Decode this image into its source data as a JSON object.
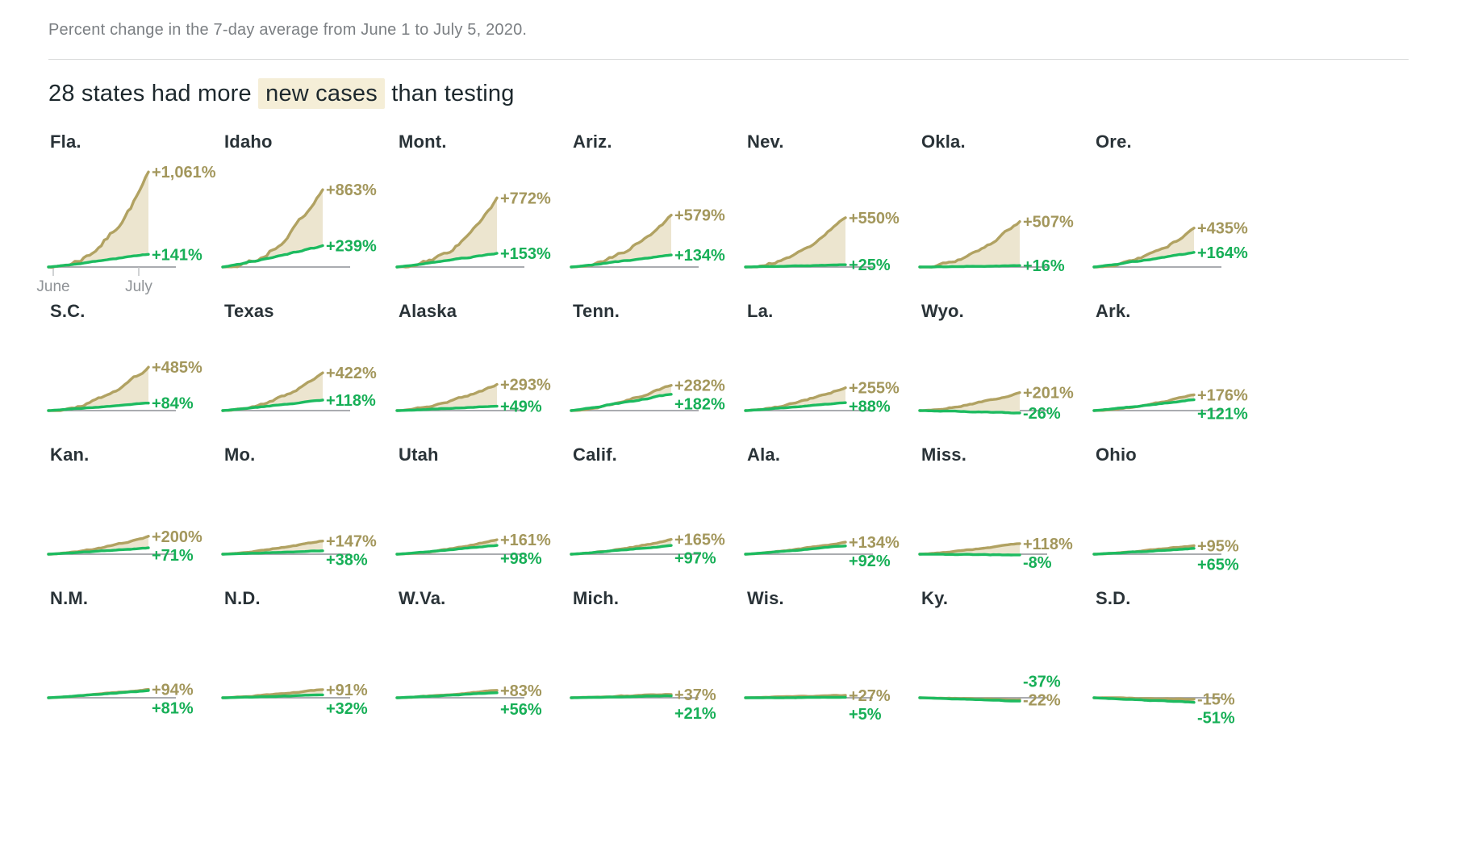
{
  "page": {
    "subtitle": "Percent change in the 7-day average from June 1 to July 5, 2020.",
    "title_prefix": "28 states had more",
    "title_highlight": "new cases",
    "title_suffix": "than testing"
  },
  "axis": {
    "month_labels": [
      "June",
      "July"
    ]
  },
  "colors": {
    "cases_line": "#b1a262",
    "cases_label": "#a3975c",
    "cases_fill": "#ece5cf",
    "testing_line": "#1dbb60",
    "testing_label": "#17af57",
    "axis": "#9ea1a4",
    "tick": "#c0c3c5",
    "tick_label": "#8f9397"
  },
  "chart_data": {
    "type": "line",
    "title": "28 states had more new cases than testing",
    "subtitle": "Percent change in the 7-day average from June 1 to July 5, 2020.",
    "unit": "percent change in 7-day average",
    "x_axis": {
      "start": "June 1, 2020",
      "end": "July 5, 2020",
      "ticks": [
        "June",
        "July"
      ]
    },
    "series": [
      "new cases",
      "testing"
    ],
    "legend_position": "inline-right",
    "grid": {
      "rows": 4,
      "cols": 7
    },
    "states": [
      {
        "name": "Fla.",
        "cases": 1061,
        "testing": 141,
        "cases_label": "+1,061%",
        "testing_label": "+141%"
      },
      {
        "name": "Idaho",
        "cases": 863,
        "testing": 239,
        "cases_label": "+863%",
        "testing_label": "+239%"
      },
      {
        "name": "Mont.",
        "cases": 772,
        "testing": 153,
        "cases_label": "+772%",
        "testing_label": "+153%"
      },
      {
        "name": "Ariz.",
        "cases": 579,
        "testing": 134,
        "cases_label": "+579%",
        "testing_label": "+134%"
      },
      {
        "name": "Nev.",
        "cases": 550,
        "testing": 25,
        "cases_label": "+550%",
        "testing_label": "+25%"
      },
      {
        "name": "Okla.",
        "cases": 507,
        "testing": 16,
        "cases_label": "+507%",
        "testing_label": "+16%"
      },
      {
        "name": "Ore.",
        "cases": 435,
        "testing": 164,
        "cases_label": "+435%",
        "testing_label": "+164%"
      },
      {
        "name": "S.C.",
        "cases": 485,
        "testing": 84,
        "cases_label": "+485%",
        "testing_label": "+84%"
      },
      {
        "name": "Texas",
        "cases": 422,
        "testing": 118,
        "cases_label": "+422%",
        "testing_label": "+118%"
      },
      {
        "name": "Alaska",
        "cases": 293,
        "testing": 49,
        "cases_label": "+293%",
        "testing_label": "+49%"
      },
      {
        "name": "Tenn.",
        "cases": 282,
        "testing": 182,
        "cases_label": "+282%",
        "testing_label": "+182%"
      },
      {
        "name": "La.",
        "cases": 255,
        "testing": 88,
        "cases_label": "+255%",
        "testing_label": "+88%"
      },
      {
        "name": "Wyo.",
        "cases": 201,
        "testing": -26,
        "cases_label": "+201%",
        "testing_label": "-26%"
      },
      {
        "name": "Ark.",
        "cases": 176,
        "testing": 121,
        "cases_label": "+176%",
        "testing_label": "+121%"
      },
      {
        "name": "Kan.",
        "cases": 200,
        "testing": 71,
        "cases_label": "+200%",
        "testing_label": "+71%"
      },
      {
        "name": "Mo.",
        "cases": 147,
        "testing": 38,
        "cases_label": "+147%",
        "testing_label": "+38%"
      },
      {
        "name": "Utah",
        "cases": 161,
        "testing": 98,
        "cases_label": "+161%",
        "testing_label": "+98%"
      },
      {
        "name": "Calif.",
        "cases": 165,
        "testing": 97,
        "cases_label": "+165%",
        "testing_label": "+97%"
      },
      {
        "name": "Ala.",
        "cases": 134,
        "testing": 92,
        "cases_label": "+134%",
        "testing_label": "+92%"
      },
      {
        "name": "Miss.",
        "cases": 118,
        "testing": -8,
        "cases_label": "+118%",
        "testing_label": "-8%"
      },
      {
        "name": "Ohio",
        "cases": 95,
        "testing": 65,
        "cases_label": "+95%",
        "testing_label": "+65%"
      },
      {
        "name": "N.M.",
        "cases": 94,
        "testing": 81,
        "cases_label": "+94%",
        "testing_label": "+81%"
      },
      {
        "name": "N.D.",
        "cases": 91,
        "testing": 32,
        "cases_label": "+91%",
        "testing_label": "+32%"
      },
      {
        "name": "W.Va.",
        "cases": 83,
        "testing": 56,
        "cases_label": "+83%",
        "testing_label": "+56%"
      },
      {
        "name": "Mich.",
        "cases": 37,
        "testing": 21,
        "cases_label": "+37%",
        "testing_label": "+21%"
      },
      {
        "name": "Wis.",
        "cases": 27,
        "testing": 5,
        "cases_label": "+27%",
        "testing_label": "+5%"
      },
      {
        "name": "Ky.",
        "cases": -22,
        "testing": -37,
        "cases_label": "-22%",
        "testing_label": "-37%",
        "testing_label_first": true
      },
      {
        "name": "S.D.",
        "cases": -15,
        "testing": -51,
        "cases_label": "-15%",
        "testing_label": "-51%"
      }
    ]
  }
}
